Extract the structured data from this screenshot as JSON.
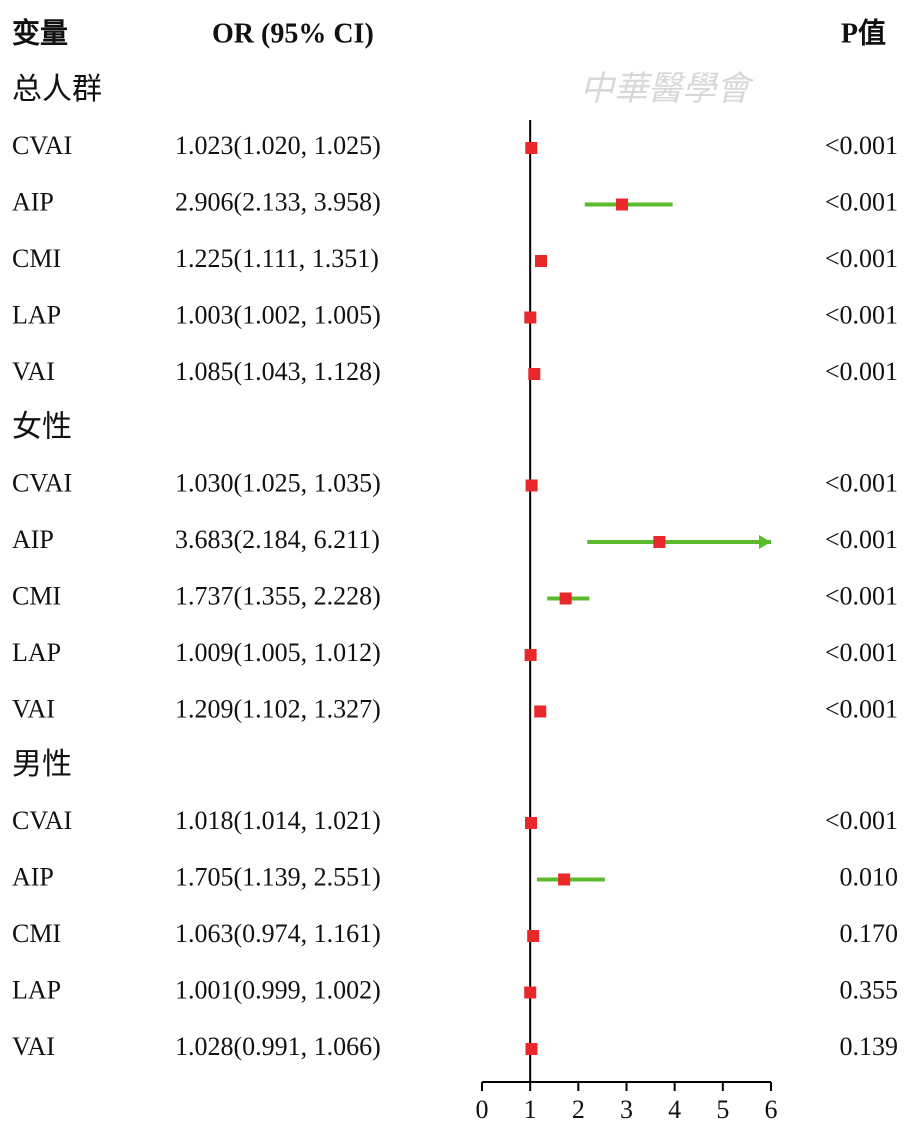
{
  "chart_data": {
    "type": "forest",
    "headers": {
      "variable": "变量",
      "or_ci": "OR (95% CI)",
      "p": "P值"
    },
    "watermark": "中華醫學會",
    "xlim": [
      0,
      6
    ],
    "xticks": [
      0,
      1,
      2,
      3,
      4,
      5,
      6
    ],
    "reference": 1,
    "point_color": "#e8282b",
    "ci_color": "#5bbb2c",
    "groups": [
      {
        "name": "总人群",
        "categories": [
          "CVAI",
          "AIP",
          "CMI",
          "LAP",
          "VAI"
        ],
        "values": [
          1.023,
          2.906,
          1.225,
          1.003,
          1.085
        ],
        "lower": [
          1.02,
          2.133,
          1.111,
          1.002,
          1.043
        ],
        "upper": [
          1.025,
          3.958,
          1.351,
          1.005,
          1.128
        ],
        "value_labels": [
          "1.023(1.020, 1.025)",
          "2.906(2.133, 3.958)",
          "1.225(1.111, 1.351)",
          "1.003(1.002, 1.005)",
          "1.085(1.043, 1.128)"
        ],
        "p_values": [
          "<0.001",
          "<0.001",
          "<0.001",
          "<0.001",
          "<0.001"
        ]
      },
      {
        "name": "女性",
        "categories": [
          "CVAI",
          "AIP",
          "CMI",
          "LAP",
          "VAI"
        ],
        "values": [
          1.03,
          3.683,
          1.737,
          1.009,
          1.209
        ],
        "lower": [
          1.025,
          2.184,
          1.355,
          1.005,
          1.102
        ],
        "upper": [
          1.035,
          6.211,
          2.228,
          1.012,
          1.327
        ],
        "value_labels": [
          "1.030(1.025, 1.035)",
          "3.683(2.184, 6.211)",
          "1.737(1.355, 2.228)",
          "1.009(1.005, 1.012)",
          "1.209(1.102, 1.327)"
        ],
        "p_values": [
          "<0.001",
          "<0.001",
          "<0.001",
          "<0.001",
          "<0.001"
        ]
      },
      {
        "name": "男性",
        "categories": [
          "CVAI",
          "AIP",
          "CMI",
          "LAP",
          "VAI"
        ],
        "values": [
          1.018,
          1.705,
          1.063,
          1.001,
          1.028
        ],
        "lower": [
          1.014,
          1.139,
          0.974,
          0.999,
          0.991
        ],
        "upper": [
          1.021,
          2.551,
          1.161,
          1.002,
          1.066
        ],
        "value_labels": [
          "1.018(1.014, 1.021)",
          "1.705(1.139, 2.551)",
          "1.063(0.974, 1.161)",
          "1.001(0.999, 1.002)",
          "1.028(0.991, 1.066)"
        ],
        "p_values": [
          "<0.001",
          "0.010",
          "0.170",
          "0.355",
          "0.139"
        ]
      }
    ]
  }
}
